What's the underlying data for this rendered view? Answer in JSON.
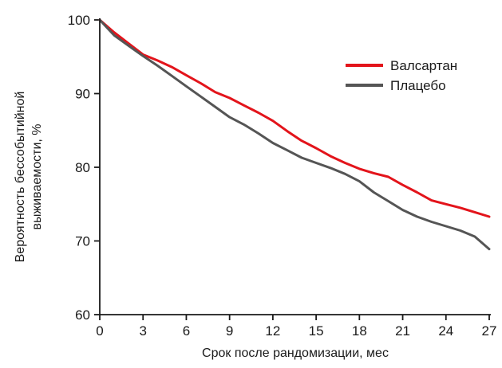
{
  "chart_data": {
    "type": "line",
    "title": "",
    "xlabel": "Срок после рандомизации, мес",
    "ylabel_lines": [
      "Вероятность бессобытийной",
      "выживаемости, %"
    ],
    "xlim": [
      0,
      27
    ],
    "ylim": [
      60,
      100
    ],
    "xticks": [
      0,
      3,
      6,
      9,
      12,
      15,
      18,
      21,
      24,
      27
    ],
    "yticks": [
      60,
      70,
      80,
      90,
      100
    ],
    "grid": false,
    "legend_position": "top-right",
    "series": [
      {
        "name": "Валсартан",
        "color": "#e3141b",
        "x": [
          0,
          1,
          2,
          3,
          4,
          5,
          6,
          7,
          8,
          9,
          10,
          11,
          12,
          13,
          14,
          15,
          16,
          17,
          18,
          19,
          20,
          21,
          22,
          23,
          24,
          25,
          26,
          27
        ],
        "y": [
          100,
          98.3,
          96.8,
          95.3,
          94.5,
          93.6,
          92.5,
          91.4,
          90.2,
          89.4,
          88.4,
          87.4,
          86.3,
          84.9,
          83.6,
          82.6,
          81.5,
          80.6,
          79.8,
          79.2,
          78.7,
          77.6,
          76.6,
          75.5,
          75,
          74.5,
          73.9,
          73.3
        ]
      },
      {
        "name": "Плацебо",
        "color": "#555555",
        "x": [
          0,
          1,
          2,
          3,
          4,
          5,
          6,
          7,
          8,
          9,
          10,
          11,
          12,
          13,
          14,
          15,
          16,
          17,
          18,
          19,
          20,
          21,
          22,
          23,
          24,
          25,
          26,
          27
        ],
        "y": [
          100,
          97.9,
          96.5,
          95.1,
          93.8,
          92.4,
          91,
          89.6,
          88.2,
          86.8,
          85.8,
          84.6,
          83.3,
          82.3,
          81.3,
          80.6,
          79.9,
          79.1,
          78.1,
          76.6,
          75.4,
          74.2,
          73.3,
          72.6,
          72,
          71.4,
          70.6,
          68.9
        ]
      }
    ]
  }
}
